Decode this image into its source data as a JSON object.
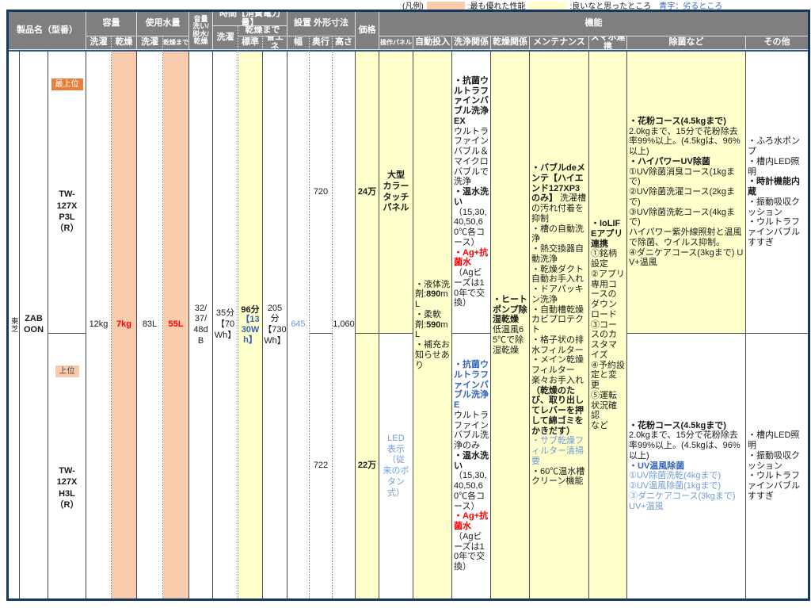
{
  "legend": {
    "caption": "(凡例)",
    "best_label": ":最も優れた性能",
    "good_label": ":良いなと思ったところ",
    "worse_label": "青字：劣るところ"
  },
  "colors": {
    "best_highlight": "#F7CBAC",
    "good_highlight": "#FFFFCC",
    "worse_text": "#3465B4",
    "badge_top": "#E8803D",
    "badge_upper": "#F8CBAD",
    "header_bg": "#7F7F7F",
    "frame": "#17375E",
    "red_text": "#FF0000"
  },
  "header": {
    "product": "製品名（型番）",
    "capacity": "容量",
    "capacity_wash": "洗濯",
    "capacity_dry": "乾燥",
    "water": "使用水量",
    "water_wash": "洗濯",
    "water_dry": "乾燥まで",
    "noise": "音量\n洗い/\n脱水/\n乾燥",
    "time": "時間【消費電力量】",
    "time_wash": "洗濯",
    "time_dry": "乾燥まで",
    "time_std": "標準",
    "time_eco": "省エネ",
    "dims": "設置 外形寸法",
    "width": "幅",
    "depth": "奥行",
    "height": "高さ",
    "price": "価格",
    "features": "機能",
    "panel": "操作パネル",
    "auto": "自動投入",
    "wash_rel": "洗浄関係",
    "dry_rel": "乾燥関係",
    "maintenance": "メンテナンス",
    "smartphone": "スマホ連携",
    "sanitize": "除菌など",
    "other": "その他"
  },
  "body": {
    "maker": "東芝",
    "brand": "ZABOON",
    "products": [
      {
        "badge": "最上位",
        "model": "TW-\n127X\nP3L\n（R）"
      },
      {
        "badge": "上位",
        "model": "TW-\n127X\nH3L\n（R）"
      }
    ],
    "capacity_wash": "12kg",
    "capacity_dry": "7kg",
    "water_wash": "83L",
    "water_dry": "55L",
    "noise": "32/\n37/\n48d\nB",
    "time_wash": "35分\n【70\nWh】",
    "time_std": [
      {
        "t": "96分\n",
        "s": "b"
      },
      {
        "t": "【13\n30W\nh】",
        "s": "bb"
      }
    ],
    "time_eco": "205\n分\n【730\nWh】",
    "width": "645",
    "depth": [
      "720",
      "722"
    ],
    "height": "1,060",
    "price": [
      "24万",
      "22万"
    ],
    "panel": [
      "大型\nカラー\nタッチ\nパネル",
      "LED\n表示\n（従\n来のボ\nタン\n式）"
    ],
    "auto_dispense": [
      {
        "t": "・液体洗剤:",
        "s": ""
      },
      {
        "t": "890",
        "s": "b"
      },
      {
        "t": "mL\n・柔軟剤:",
        "s": ""
      },
      {
        "t": "590",
        "s": "b"
      },
      {
        "t": "mL\n・補充お知らせあり",
        "s": ""
      }
    ],
    "wash": [
      [
        {
          "t": "・抗菌ウルトラファインバブル洗浄EX\n",
          "s": "b"
        },
        {
          "t": "ウルトラファインバブル＆マイクロバブルで洗浄\n",
          "s": ""
        },
        {
          "t": "・温水洗い\n",
          "s": "b"
        },
        {
          "t": "（15,30,40,50,60℃各コース）\n",
          "s": ""
        },
        {
          "t": "・Ag+抗菌水\n",
          "s": "rb"
        },
        {
          "t": "（Agビーズは10年で交換）",
          "s": ""
        }
      ],
      [
        {
          "t": "・抗菌ウルトラファインバブル洗浄E\n",
          "s": "bb"
        },
        {
          "t": "ウルトラファインバブル洗浄のみ\n",
          "s": ""
        },
        {
          "t": "・温水洗い\n",
          "s": "b"
        },
        {
          "t": "（15,30,40,50,60℃各コース）\n",
          "s": ""
        },
        {
          "t": "・Ag+抗菌水\n",
          "s": "rb"
        },
        {
          "t": "（Agビーズは10年で交換）",
          "s": ""
        }
      ]
    ],
    "dry": [
      {
        "t": "・ヒートポンプ除湿乾燥\n",
        "s": "b"
      },
      {
        "t": "低温風65℃で除湿乾燥",
        "s": ""
      }
    ],
    "maintenance": [
      {
        "t": "・バブルdeメンテ【ハイエンド127XP3のみ】",
        "s": "b"
      },
      {
        "t": " 洗濯槽の汚れ付着を抑制\n",
        "s": ""
      },
      {
        "t": "・槽の自動洗浄\n・熱交換器自動洗浄\n・乾燥ダクト自動お手入れ\n・ドアパッキン洗浄\n・自動槽乾燥カビプロテクト\n・格子状の排水フィルター\n・メイン乾燥フィルター楽々お手入れ",
        "s": ""
      },
      {
        "t": "（乾燥のたび、取り出してレバーを押して綿ゴミをかきだす）\n",
        "s": "b"
      },
      {
        "t": "・サブ乾燥フィルター清掃要\n",
        "s": "bl"
      },
      {
        "t": "・60℃温水槽クリーン機能",
        "s": ""
      }
    ],
    "smartphone": [
      {
        "t": "・IoLIFEアプリ連携\n",
        "s": "b"
      },
      {
        "t": "①銘柄設定\n②アプリ専用コースのダウンロード\n③コースのカスタマイズ\n④予約設定と変更\n⑤運転状況確認\nなど",
        "s": ""
      }
    ],
    "sanitize": [
      [
        {
          "t": "・花粉コース(4.5kgまで)\n",
          "s": "b"
        },
        {
          "t": "2.0kgまで、15分で花粉除去率99%以上。(4.5kgは、96%以上)\n",
          "s": ""
        },
        {
          "t": "・ハイパワーUV除菌\n",
          "s": "b"
        },
        {
          "t": "①UV除菌消臭コース(1kgまで)\n②UV除菌洗濯コース(2kgまで)\n③UV除菌洗乾コース(4kgまで)\nハイパワー紫外線照射と温風で除菌、ウイルス抑制。\n④ダニケアコース(3kgまで) UV+温風",
          "s": ""
        }
      ],
      [
        {
          "t": "・花粉コース(4.5kgまで)\n",
          "s": "b"
        },
        {
          "t": "2.0kgまで、15分で花粉除去率99%以上。(4.5kgは、96%以上)\n",
          "s": ""
        },
        {
          "t": "・UV温風除菌\n",
          "s": "bb"
        },
        {
          "t": "①UV除菌洗乾(4kgまで)\n②UV温風除菌(1kgまで)\n③ダニケアコース(3kgまで) UV+温風",
          "s": "bl"
        }
      ]
    ],
    "other": [
      [
        {
          "t": "・ふろ水ポンプ\n・槽内LED照明\n",
          "s": ""
        },
        {
          "t": "・時計機能内蔵\n",
          "s": "b"
        },
        {
          "t": "・振動吸収クッション\n・ウルトラファインバブルすすぎ",
          "s": ""
        }
      ],
      [
        {
          "t": "・槽内LED照明\n・振動吸収クッション\n・ウルトラファインバブルすすぎ",
          "s": ""
        }
      ]
    ]
  }
}
